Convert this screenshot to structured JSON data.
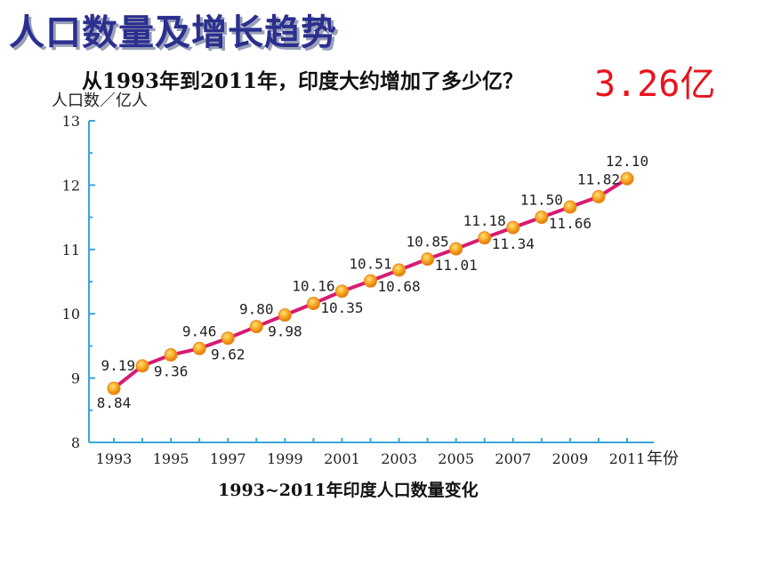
{
  "header": {
    "title": "人口数量及增长趋势",
    "question": "从1993年到2011年，印度大约增加了多少亿？",
    "answer": "3.26亿"
  },
  "caption": "1993~2011年印度人口数量变化",
  "chart_data": {
    "type": "line",
    "ylabel": "人口数／亿人",
    "xlabel": "年份",
    "ylim": [
      8,
      13
    ],
    "yticks": [
      8,
      9,
      10,
      11,
      12,
      13
    ],
    "xticks": [
      1993,
      1995,
      1997,
      1999,
      2001,
      2003,
      2005,
      2007,
      2009,
      2011
    ],
    "x": [
      1993,
      1994,
      1995,
      1996,
      1997,
      1998,
      1999,
      2000,
      2001,
      2002,
      2003,
      2004,
      2005,
      2006,
      2007,
      2008,
      2009,
      2010,
      2011
    ],
    "values": [
      8.84,
      9.19,
      9.36,
      9.46,
      9.62,
      9.8,
      9.98,
      10.16,
      10.35,
      10.51,
      10.68,
      10.85,
      11.01,
      11.18,
      11.34,
      11.5,
      11.66,
      11.82,
      12.1
    ],
    "labels": [
      "8.84",
      "9.19",
      "9.36",
      "9.46",
      "9.62",
      "9.80",
      "9.98",
      "10.16",
      "10.35",
      "10.51",
      "10.68",
      "10.85",
      "11.01",
      "11.18",
      "11.34",
      "11.50",
      "11.66",
      "11.82",
      "12.10"
    ],
    "line_color": "#d81b72",
    "marker_color": "#f7a21b",
    "axis_color": "#3aa6d8"
  }
}
